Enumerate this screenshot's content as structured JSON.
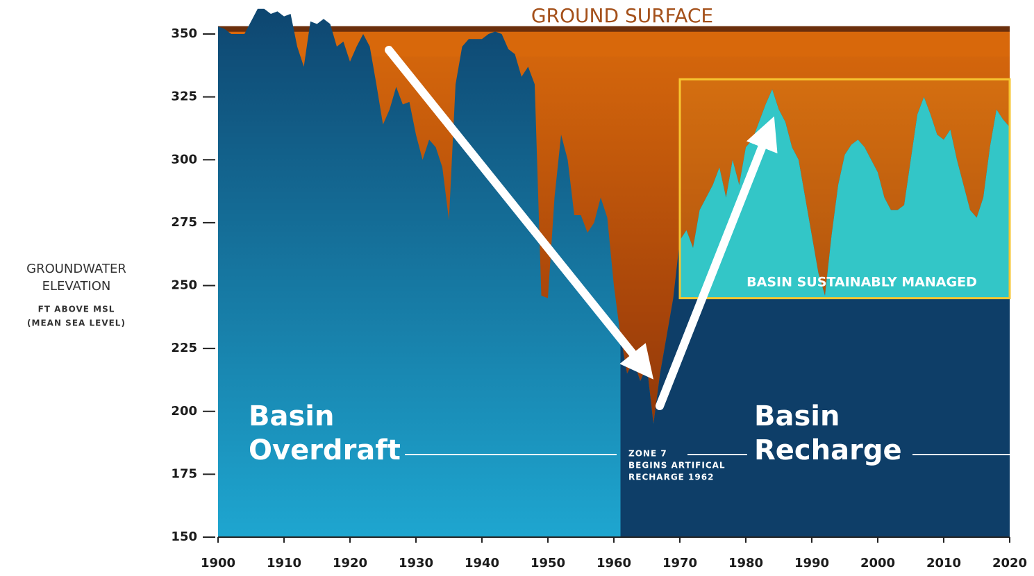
{
  "chart_data": {
    "type": "area",
    "title": "GROUND SURFACE",
    "y_label": [
      "GROUNDWATER",
      "ELEVATION",
      "FT ABOVE MSL",
      "(MEAN SEA LEVEL)"
    ],
    "ground_surface": 352,
    "x": [
      1900,
      1901,
      1902,
      1903,
      1904,
      1905,
      1906,
      1907,
      1908,
      1909,
      1910,
      1911,
      1912,
      1913,
      1914,
      1915,
      1916,
      1917,
      1918,
      1919,
      1920,
      1921,
      1922,
      1923,
      1924,
      1925,
      1926,
      1927,
      1928,
      1929,
      1930,
      1931,
      1932,
      1933,
      1934,
      1935,
      1936,
      1937,
      1938,
      1939,
      1940,
      1941,
      1942,
      1943,
      1944,
      1945,
      1946,
      1947,
      1948,
      1949,
      1950,
      1951,
      1952,
      1953,
      1954,
      1955,
      1956,
      1957,
      1958,
      1959,
      1960,
      1961,
      1962,
      1963,
      1964,
      1965,
      1966,
      1967,
      1968,
      1969,
      1970,
      1971,
      1972,
      1973,
      1974,
      1975,
      1976,
      1977,
      1978,
      1979,
      1980,
      1981,
      1982,
      1983,
      1984,
      1985,
      1986,
      1987,
      1988,
      1989,
      1990,
      1991,
      1992,
      1993,
      1994,
      1995,
      1996,
      1997,
      1998,
      1999,
      2000,
      2001,
      2002,
      2003,
      2004,
      2005,
      2006,
      2007,
      2008,
      2009,
      2010,
      2011,
      2012,
      2013,
      2014,
      2015,
      2016,
      2017,
      2018,
      2019,
      2020
    ],
    "values": [
      353,
      352,
      350,
      350,
      350,
      355,
      360,
      360,
      358,
      359,
      357,
      358,
      345,
      337,
      355,
      354,
      356,
      354,
      345,
      347,
      339,
      345,
      350,
      345,
      330,
      314,
      320,
      329,
      322,
      323,
      310,
      300,
      308,
      305,
      297,
      276,
      330,
      345,
      348,
      348,
      348,
      350,
      351,
      350,
      344,
      342,
      333,
      337,
      330,
      246,
      245,
      285,
      310,
      300,
      278,
      278,
      271,
      275,
      285,
      277,
      250,
      230,
      215,
      220,
      212,
      218,
      195,
      215,
      230,
      245,
      268,
      272,
      265,
      280,
      285,
      290,
      297,
      285,
      300,
      290,
      305,
      308,
      315,
      322,
      328,
      320,
      315,
      305,
      300,
      285,
      270,
      255,
      246,
      270,
      290,
      302,
      306,
      308,
      305,
      300,
      295,
      285,
      280,
      280,
      282,
      300,
      318,
      325,
      318,
      310,
      308,
      312,
      300,
      290,
      280,
      277,
      285,
      305,
      320,
      316,
      313
    ],
    "colors": {
      "ground": "#d8690c",
      "ground_line": "#6b2f0c",
      "water_top": "#0e4670",
      "water_bottom": "#1ea6d0",
      "recharge": "#0e3e68",
      "managed": "#19c6dc",
      "managed_border": "#f7c531"
    },
    "managed_region": {
      "xlim": [
        1970,
        2020
      ],
      "ylim": [
        245,
        332
      ]
    },
    "recharge_start": 1961,
    "xlim": [
      1900,
      2020
    ],
    "ylim": [
      150,
      350
    ],
    "xticks": [
      1900,
      1910,
      1920,
      1930,
      1940,
      1950,
      1960,
      1970,
      1980,
      1990,
      2000,
      2010,
      2020
    ],
    "yticks": [
      150,
      175,
      200,
      225,
      250,
      275,
      300,
      325,
      350
    ],
    "annotations": {
      "managed": "BASIN SUSTAINABLY MANAGED",
      "overdraft": [
        "Basin",
        "Overdraft"
      ],
      "recharge": [
        "Basin",
        "Recharge"
      ],
      "zone7": [
        "ZONE 7",
        "BEGINS ARTIFICAL",
        "RECHARGE 1962"
      ]
    }
  }
}
